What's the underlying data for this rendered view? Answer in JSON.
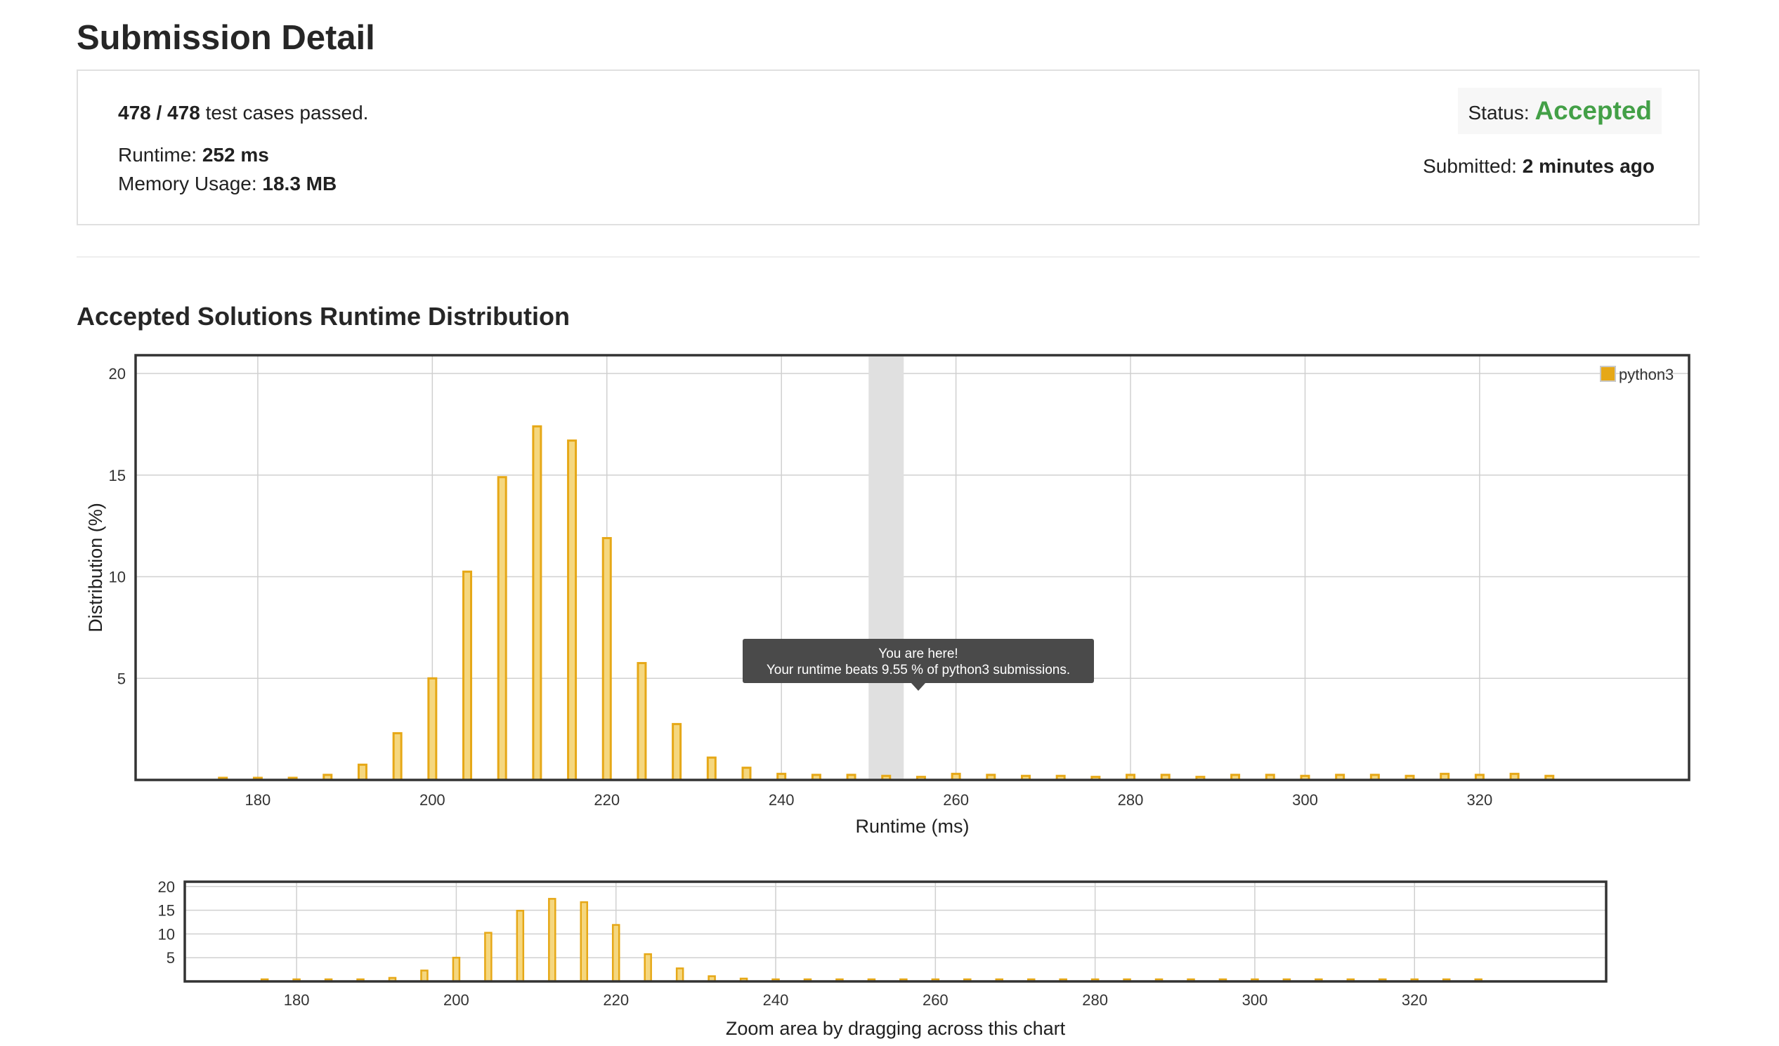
{
  "page": {
    "title": "Submission Detail"
  },
  "summary": {
    "tests_passed": "478 / 478",
    "tests_suffix": "test cases passed.",
    "runtime_label": "Runtime:",
    "runtime_value": "252 ms",
    "memory_label": "Memory Usage:",
    "memory_value": "18.3 MB",
    "status_label": "Status:",
    "status_value": "Accepted",
    "submitted_label": "Submitted:",
    "submitted_value": "2 minutes ago"
  },
  "colors": {
    "bar_fill": "#f5d77f",
    "bar_stroke": "#e6a817",
    "accepted": "#43a047",
    "highlight": "#e0e0e0",
    "tooltip_bg": "#4a4a4a"
  },
  "section": {
    "title": "Accepted Solutions Runtime Distribution"
  },
  "chart_data": [
    {
      "type": "bar",
      "xlabel": "Runtime (ms)",
      "ylabel": "Distribution (%)",
      "xlim": [
        166,
        344
      ],
      "ylim": [
        0,
        20.9
      ],
      "xticks": [
        180,
        200,
        220,
        240,
        260,
        280,
        300,
        320
      ],
      "yticks": [
        5,
        10,
        15,
        20
      ],
      "grid": true,
      "legend": {
        "position": "top-right"
      },
      "highlight_x": 252,
      "series": [
        {
          "name": "python3",
          "x": [
            176,
            180,
            184,
            188,
            192,
            196,
            200,
            204,
            208,
            212,
            216,
            220,
            224,
            228,
            232,
            236,
            240,
            244,
            248,
            252,
            256,
            260,
            264,
            268,
            272,
            276,
            280,
            284,
            288,
            292,
            296,
            300,
            304,
            308,
            312,
            316,
            320,
            324,
            328
          ],
          "values": [
            0.05,
            0.05,
            0.1,
            0.25,
            0.75,
            2.3,
            5.0,
            10.25,
            14.9,
            17.4,
            16.7,
            11.9,
            5.75,
            2.75,
            1.1,
            0.6,
            0.3,
            0.25,
            0.25,
            0.2,
            0.15,
            0.3,
            0.25,
            0.2,
            0.2,
            0.15,
            0.25,
            0.25,
            0.15,
            0.25,
            0.25,
            0.2,
            0.25,
            0.25,
            0.2,
            0.3,
            0.25,
            0.3,
            0.2
          ]
        }
      ],
      "tooltip": {
        "line1": "You are here!",
        "line2": "Your runtime beats 9.55 % of python3 submissions."
      }
    },
    {
      "type": "bar",
      "role": "navigator",
      "xlim": [
        166,
        344
      ],
      "ylim": [
        0,
        21
      ],
      "xticks": [
        180,
        200,
        220,
        240,
        260,
        280,
        300,
        320
      ],
      "yticks": [
        5,
        10,
        15,
        20
      ],
      "caption": "Zoom area by dragging across this chart"
    }
  ]
}
